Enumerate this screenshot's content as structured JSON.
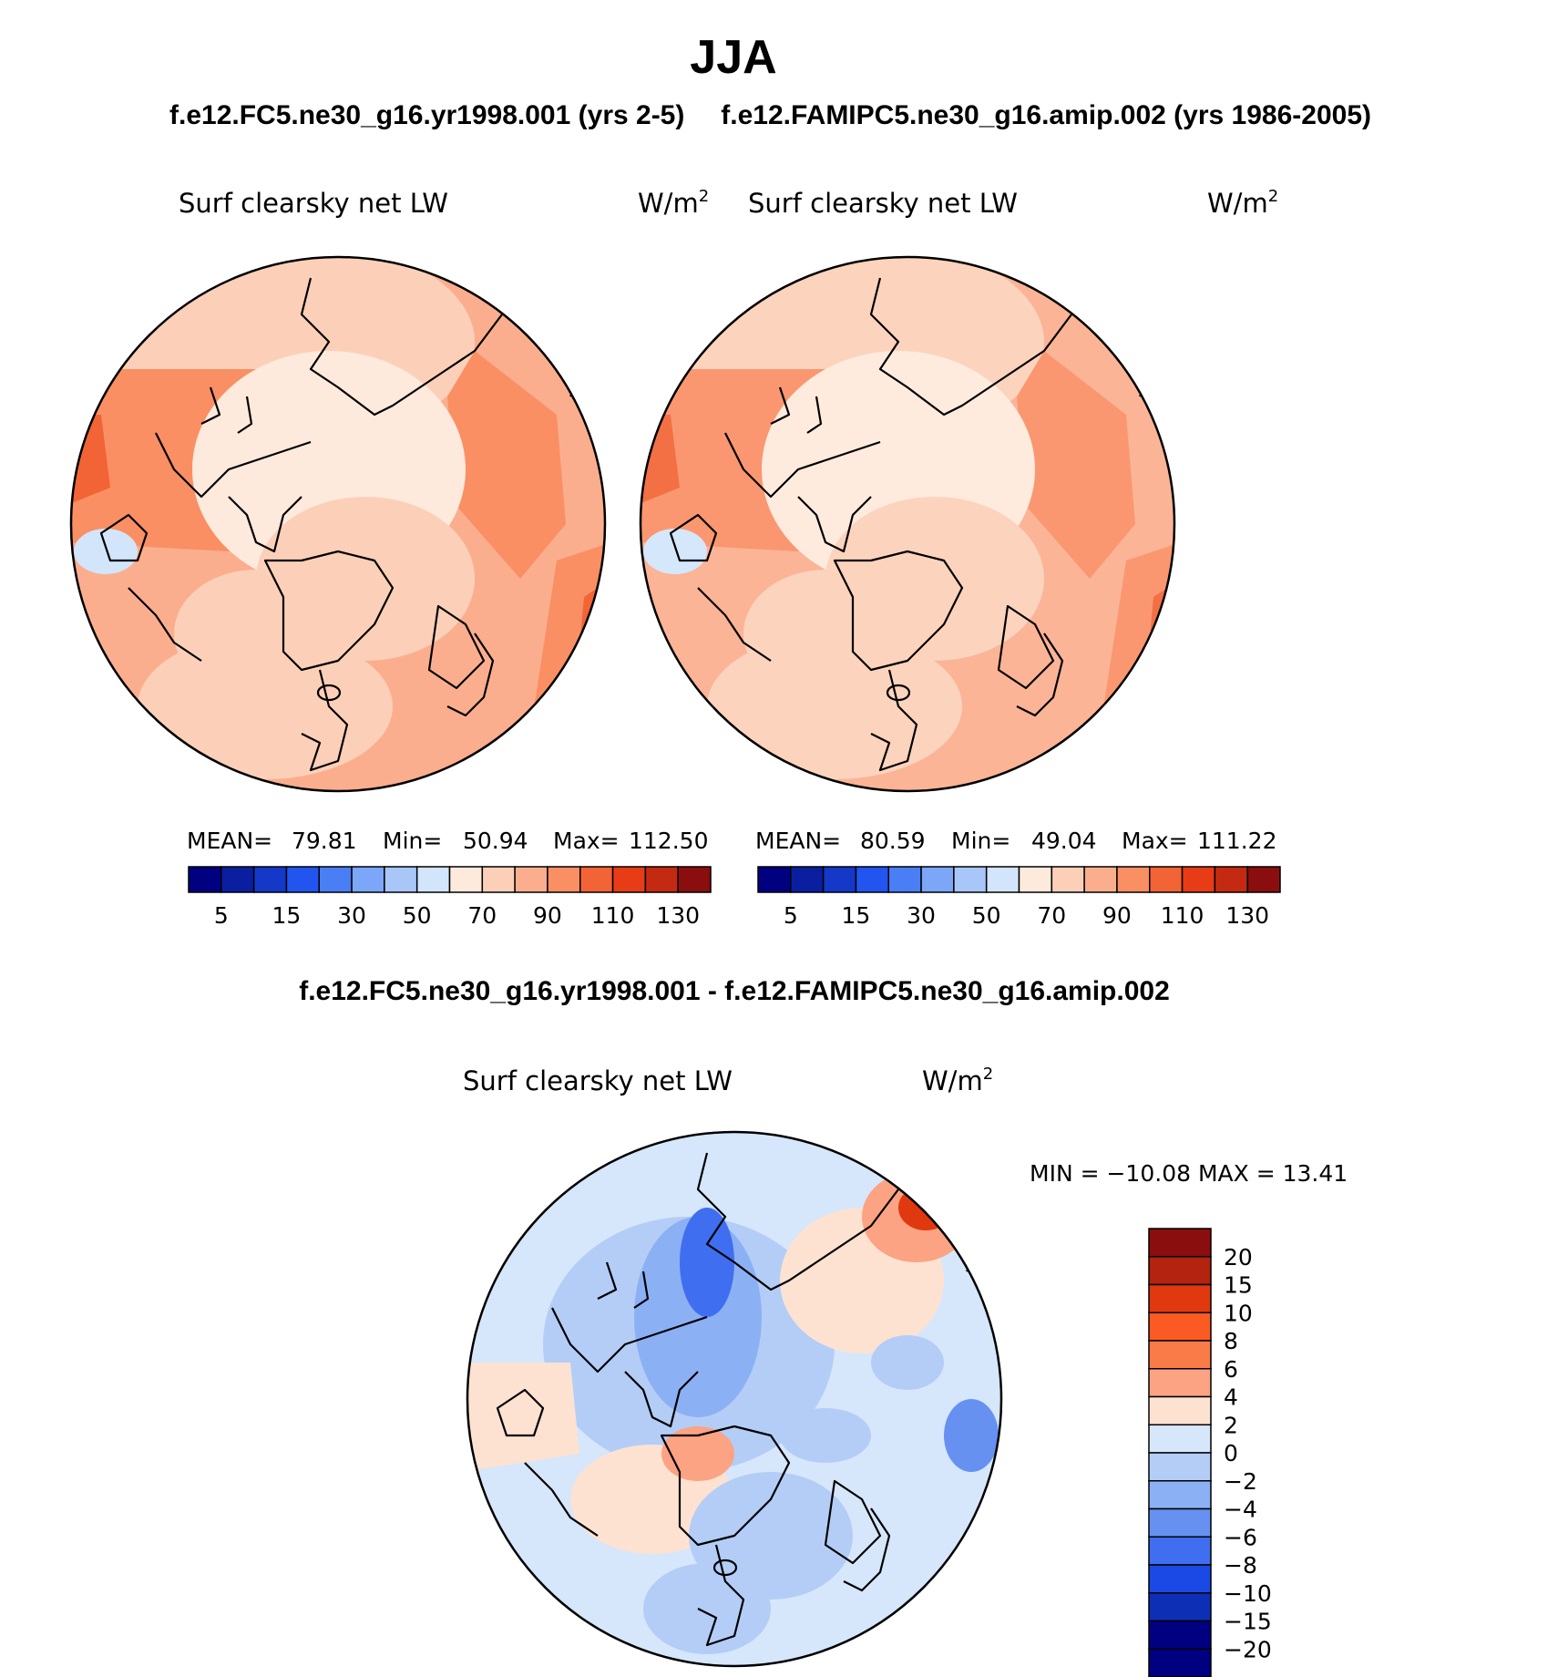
{
  "figure": {
    "title": "JJA",
    "subtitle_left": "f.e12.FC5.ne30_g16.yr1998.001 (yrs 2-5)",
    "subtitle_right": "f.e12.FAMIPC5.ne30_g16.amip.002 (yrs 1986-2005)",
    "diff_title": "f.e12.FC5.ne30_g16.yr1998.001 - f.e12.FAMIPC5.ne30_g16.amip.002"
  },
  "colors": {
    "abs_scale": [
      "#000080",
      "#0a1fa0",
      "#1438c8",
      "#2255f0",
      "#4a7ef5",
      "#7ca6f7",
      "#a8c6f8",
      "#d2e5fb",
      "#feeadc",
      "#fcd0b8",
      "#fbae8e",
      "#fa8f64",
      "#f26435",
      "#e83c16",
      "#c42a12",
      "#8b0e0e"
    ],
    "diff_scale": [
      "#8b0e0e",
      "#b3230f",
      "#e0380f",
      "#fb5a22",
      "#fa7b48",
      "#fba383",
      "#fde2d2",
      "#d6e6fb",
      "#b3cdf7",
      "#8cb0f4",
      "#6691f1",
      "#3f6ff0",
      "#1b49e6",
      "#0d2fb6",
      "#000080"
    ],
    "coastline": "#000000"
  },
  "panels": [
    {
      "id": "left",
      "variable": "Surf clearsky net LW",
      "units_base": "W/m",
      "units_exp": "2",
      "stats": {
        "mean_label": "MEAN=",
        "mean": "79.81",
        "min_label": "Min=",
        "min": "50.94",
        "max_label": "Max=",
        "max": "112.50"
      }
    },
    {
      "id": "right",
      "variable": "Surf clearsky net LW",
      "units_base": "W/m",
      "units_exp": "2",
      "stats": {
        "mean_label": "MEAN=",
        "mean": "80.59",
        "min_label": "Min=",
        "min": "49.04",
        "max_label": "Max=",
        "max": "111.22"
      }
    },
    {
      "id": "diff",
      "variable": "Surf clearsky net LW",
      "units_base": "W/m",
      "units_exp": "2",
      "stats": {
        "text": "MIN = −10.08 MAX =   13.41"
      }
    }
  ],
  "chart_data": [
    {
      "type": "heatmap",
      "projection": "north polar stereographic",
      "title": "f.e12.FC5.ne30_g16.yr1998.001 (yrs 2-5)",
      "variable": "Surf clearsky net LW",
      "units": "W/m2",
      "mean": 79.81,
      "min": 50.94,
      "max": 112.5,
      "colorbar_ticks": [
        "5",
        "15",
        "30",
        "50",
        "70",
        "90",
        "110",
        "130"
      ],
      "contour_levels": [
        5,
        10,
        15,
        20,
        30,
        40,
        50,
        60,
        70,
        80,
        90,
        100,
        110,
        120,
        130
      ]
    },
    {
      "type": "heatmap",
      "projection": "north polar stereographic",
      "title": "f.e12.FAMIPC5.ne30_g16.amip.002 (yrs 1986-2005)",
      "variable": "Surf clearsky net LW",
      "units": "W/m2",
      "mean": 80.59,
      "min": 49.04,
      "max": 111.22,
      "colorbar_ticks": [
        "5",
        "15",
        "30",
        "50",
        "70",
        "90",
        "110",
        "130"
      ],
      "contour_levels": [
        5,
        10,
        15,
        20,
        30,
        40,
        50,
        60,
        70,
        80,
        90,
        100,
        110,
        120,
        130
      ]
    },
    {
      "type": "heatmap",
      "projection": "north polar stereographic",
      "title": "f.e12.FC5.ne30_g16.yr1998.001 - f.e12.FAMIPC5.ne30_g16.amip.002",
      "variable": "Surf clearsky net LW",
      "units": "W/m2",
      "min": -10.08,
      "max": 13.41,
      "colorbar_ticks": [
        "20",
        "15",
        "10",
        "8",
        "6",
        "4",
        "2",
        "0",
        "−2",
        "−4",
        "−6",
        "−8",
        "−10",
        "−15",
        "−20"
      ],
      "contour_levels": [
        20,
        15,
        10,
        8,
        6,
        4,
        2,
        0,
        -2,
        -4,
        -6,
        -8,
        -10,
        -15,
        -20
      ]
    }
  ]
}
